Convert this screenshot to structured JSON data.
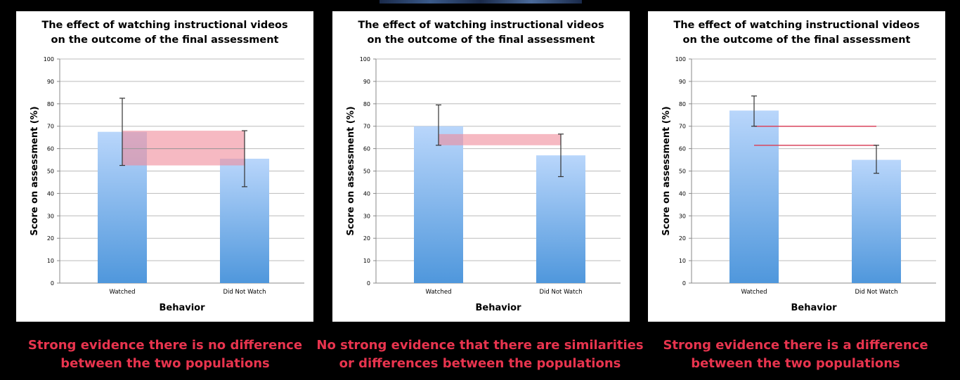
{
  "chart_data": [
    {
      "type": "bar",
      "title_lines": [
        "The effect of watching instructional videos",
        "on the outcome of the final assessment"
      ],
      "xlabel": "Behavior",
      "ylabel": "Score on assessment (%)",
      "ylim": [
        0,
        100
      ],
      "yticks": [
        0,
        10,
        20,
        30,
        40,
        50,
        60,
        70,
        80,
        90,
        100
      ],
      "grid": true,
      "categories": [
        "Watched",
        "Did Not Watch"
      ],
      "values": [
        67.5,
        55.5
      ],
      "error_bars": [
        [
          52.5,
          82.5
        ],
        [
          43,
          68
        ]
      ],
      "overlap_band": [
        52.5,
        68
      ],
      "band_midline": 60,
      "caption": [
        "Strong evidence there is no difference",
        "between the two populations"
      ]
    },
    {
      "type": "bar",
      "title_lines": [
        "The effect of watching instructional videos",
        "on the outcome of the final assessment"
      ],
      "xlabel": "Behavior",
      "ylabel": "Score on assessment (%)",
      "ylim": [
        0,
        100
      ],
      "yticks": [
        0,
        10,
        20,
        30,
        40,
        50,
        60,
        70,
        80,
        90,
        100
      ],
      "grid": true,
      "categories": [
        "Watched",
        "Did Not Watch"
      ],
      "values": [
        70,
        57
      ],
      "error_bars": [
        [
          61.5,
          79.5
        ],
        [
          47.5,
          66.5
        ]
      ],
      "overlap_band": [
        61.5,
        66.5
      ],
      "caption": [
        "No strong evidence that there are similarities",
        "or differences between the populations"
      ]
    },
    {
      "type": "bar",
      "title_lines": [
        "The effect of watching instructional videos",
        "on the outcome of the final assessment"
      ],
      "xlabel": "Behavior",
      "ylabel": "Score on assessment (%)",
      "ylim": [
        0,
        100
      ],
      "yticks": [
        0,
        10,
        20,
        30,
        40,
        50,
        60,
        70,
        80,
        90,
        100
      ],
      "grid": true,
      "categories": [
        "Watched",
        "Did Not Watch"
      ],
      "values": [
        77,
        55
      ],
      "error_bars": [
        [
          70,
          83.5
        ],
        [
          49,
          61.5
        ]
      ],
      "gap_lines": [
        70,
        61.5
      ],
      "caption": [
        "Strong evidence there is a difference",
        "between the two populations"
      ]
    }
  ],
  "colors": {
    "bar_top": "#b9d6fb",
    "bar_bottom": "#4f97dc",
    "band": "#f08a9a",
    "band_line": "#d9455e",
    "caption": "#e8344e",
    "grid": "#bbbbbb"
  }
}
